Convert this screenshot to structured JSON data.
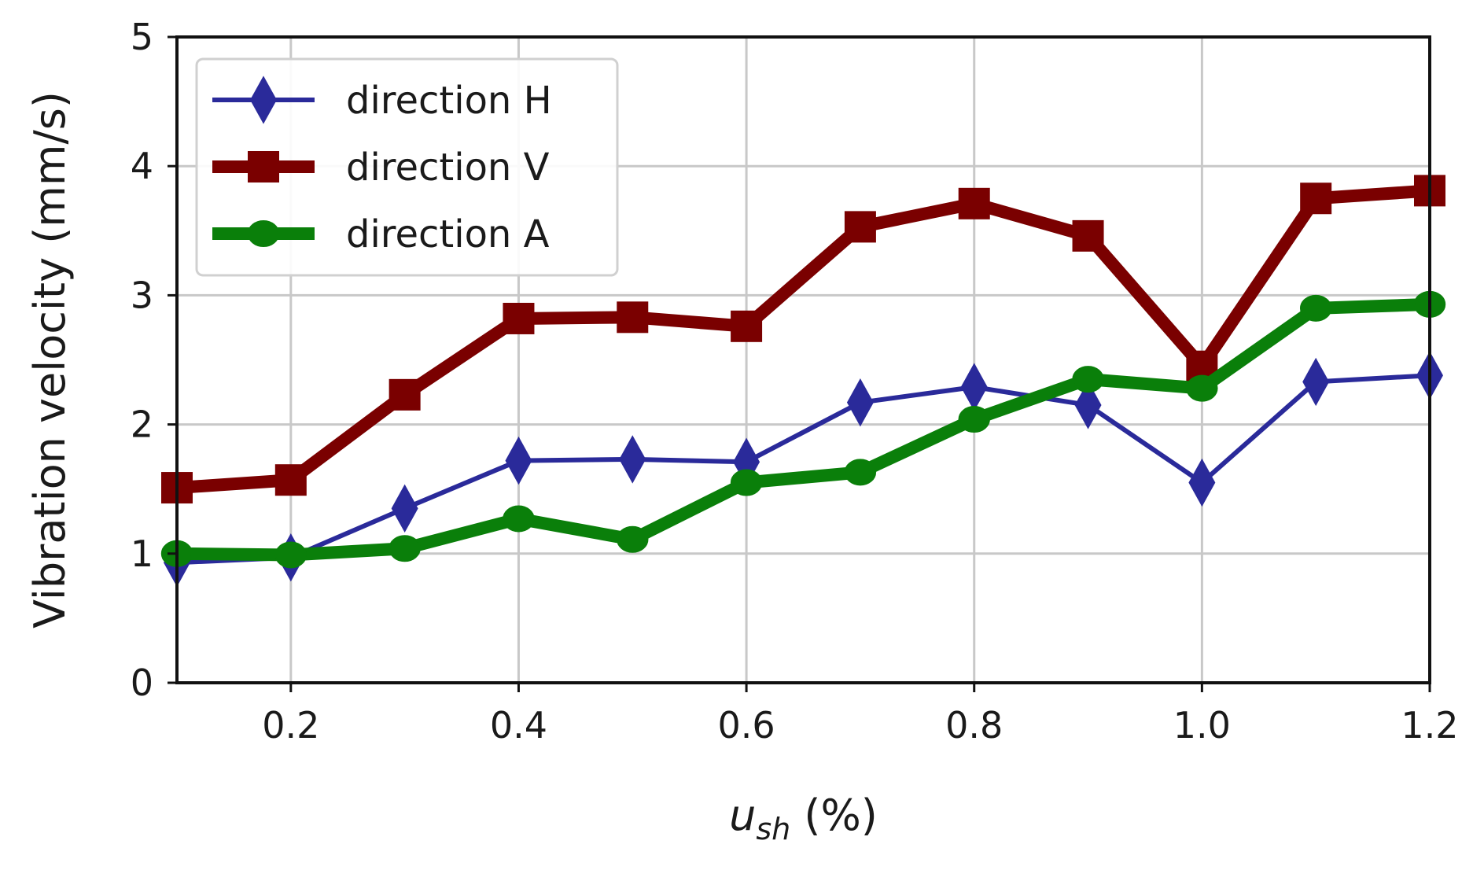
{
  "chart_data": {
    "type": "line",
    "xlabel": {
      "main": "u",
      "sub": "sh",
      "rest": " (%)"
    },
    "ylabel": "Vibration velocity (mm/s)",
    "xlim": [
      0.1,
      1.2
    ],
    "ylim": [
      0,
      5
    ],
    "xticks": [
      "0.2",
      "0.4",
      "0.6",
      "0.8",
      "1.0",
      "1.2"
    ],
    "xtick_values": [
      0.2,
      0.4,
      0.6,
      0.8,
      1.0,
      1.2
    ],
    "yticks": [
      "0",
      "1",
      "2",
      "3",
      "4",
      "5"
    ],
    "ytick_values": [
      0,
      1,
      2,
      3,
      4,
      5
    ],
    "grid": true,
    "legend_position": "top-left",
    "x": [
      0.1,
      0.2,
      0.3,
      0.4,
      0.5,
      0.6,
      0.7,
      0.8,
      0.9,
      1.0,
      1.1,
      1.2
    ],
    "series": [
      {
        "name": "direction H",
        "color": "#2a2a9a",
        "marker": "diamond",
        "values": [
          0.93,
          0.97,
          1.35,
          1.72,
          1.73,
          1.71,
          2.17,
          2.29,
          2.15,
          1.55,
          2.33,
          2.38
        ]
      },
      {
        "name": "direction V",
        "color": "#7a0000",
        "marker": "square",
        "values": [
          1.51,
          1.57,
          2.23,
          2.82,
          2.83,
          2.76,
          3.53,
          3.71,
          3.46,
          2.45,
          3.75,
          3.81
        ]
      },
      {
        "name": "direction A",
        "color": "#0a7f0a",
        "marker": "circle",
        "values": [
          1.0,
          0.99,
          1.04,
          1.27,
          1.11,
          1.55,
          1.63,
          2.04,
          2.35,
          2.28,
          2.9,
          2.93
        ]
      }
    ]
  }
}
